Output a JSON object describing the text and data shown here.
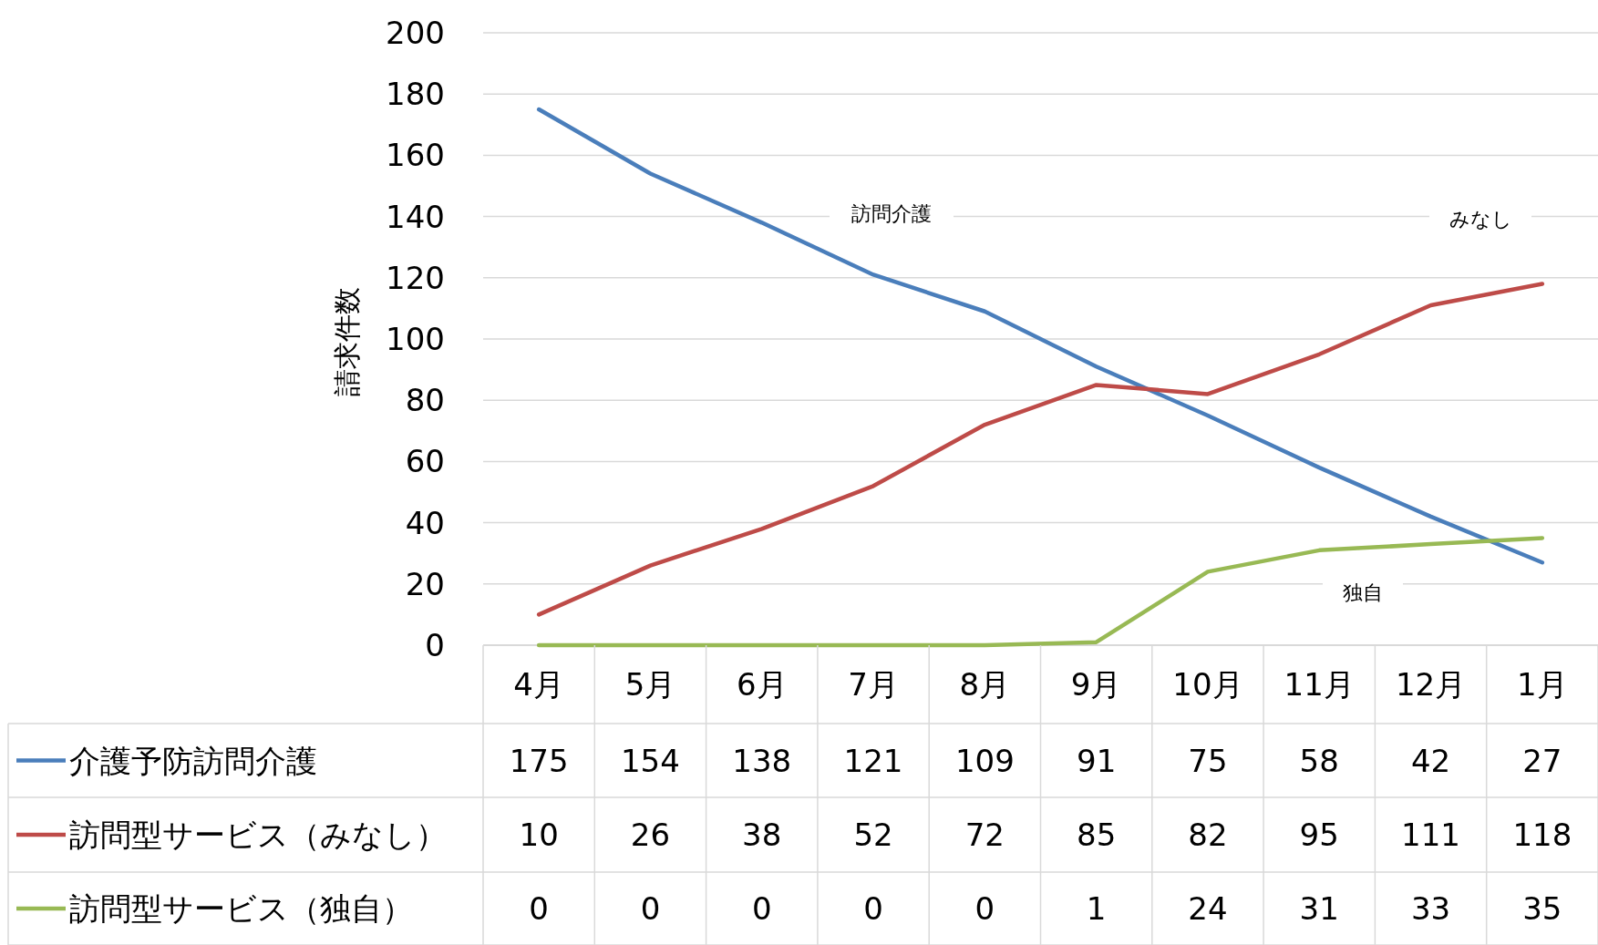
{
  "chart_data": {
    "type": "line",
    "ylabel": "請求件数",
    "categories": [
      "4月",
      "5月",
      "6月",
      "7月",
      "8月",
      "9月",
      "10月",
      "11月",
      "12月",
      "1月"
    ],
    "series": [
      {
        "name": "介護予防訪問介護",
        "color": "#4a7ebb",
        "values": [
          175,
          154,
          138,
          121,
          109,
          91,
          75,
          58,
          42,
          27
        ]
      },
      {
        "name": "訪問型サービス（みなし）",
        "color": "#be4b48",
        "values": [
          10,
          26,
          38,
          52,
          72,
          85,
          82,
          95,
          111,
          118
        ]
      },
      {
        "name": "訪問型サービス（独自）",
        "color": "#98b954",
        "values": [
          0,
          0,
          0,
          0,
          0,
          1,
          24,
          31,
          33,
          35
        ]
      }
    ],
    "ylim": [
      0,
      200
    ],
    "yticks": [
      0,
      20,
      40,
      60,
      80,
      100,
      120,
      140,
      160,
      180,
      200
    ],
    "grid": "y",
    "legend": "bottom",
    "data_labels": true,
    "marker": "none",
    "line_style": "solid",
    "annotations": [
      "訪問介護",
      "みなし",
      "独自"
    ]
  }
}
